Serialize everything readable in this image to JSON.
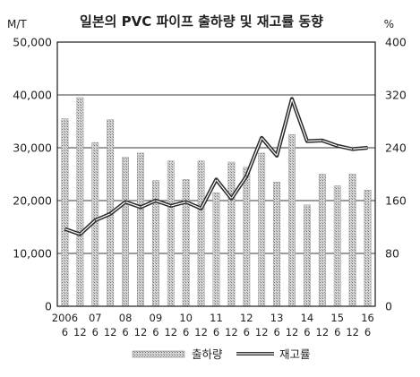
{
  "chart_data": {
    "type": "bar",
    "title": "일본의 PVC 파이프 출하량 및 재고률 동향",
    "left_unit": "M/T",
    "right_unit": "%",
    "left_axis": {
      "min": 0,
      "max": 50000,
      "ticks": [
        "50,000",
        "40,000",
        "30,000",
        "20,000",
        "10,000",
        "0"
      ]
    },
    "right_axis": {
      "min": 0,
      "max": 400,
      "ticks": [
        "400",
        "320",
        "240",
        "160",
        "80",
        "0"
      ]
    },
    "x_year_labels": [
      "2006",
      "07",
      "08",
      "09",
      "10",
      "11",
      "12",
      "13",
      "14",
      "15",
      "16"
    ],
    "x_month_labels": [
      "6",
      "12",
      "6",
      "12",
      "6",
      "12",
      "6",
      "12",
      "6",
      "12",
      "6",
      "12",
      "6",
      "12",
      "6",
      "12",
      "6",
      "12",
      "6",
      "12",
      "6"
    ],
    "grid": "horizontal",
    "legend_position": "bottom",
    "series": [
      {
        "name": "출하량",
        "type": "bar",
        "axis": "left",
        "values": [
          35500,
          39500,
          31000,
          35300,
          28200,
          29000,
          23800,
          27500,
          24000,
          27500,
          21500,
          27300,
          26300,
          29000,
          23500,
          32500,
          19200,
          25000,
          22800,
          25000,
          22000
        ]
      },
      {
        "name": "재고률",
        "type": "line",
        "axis": "right",
        "values": [
          117,
          109,
          130,
          140,
          158,
          150,
          160,
          152,
          158,
          148,
          192,
          163,
          197,
          255,
          228,
          314,
          250,
          251,
          243,
          238,
          240
        ]
      }
    ]
  }
}
